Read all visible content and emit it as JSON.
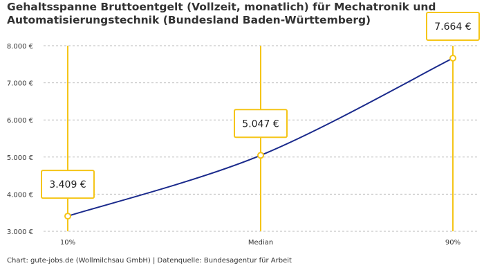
{
  "title_lines": [
    "Gehaltsspanne Bruttoentgelt (Vollzeit, monatlich) für Mechatronik und",
    "Automatisierungstechnik (Bundesland Baden-Württemberg)"
  ],
  "caption": "Chart: gute-jobs.de (Wollmilchsau GmbH) | Datenquelle: Bundesagentur für Arbeit",
  "colors": {
    "line": "#1a2a8c",
    "accent": "#f5c518",
    "grid": "#bbbbbb"
  },
  "chart_data": {
    "type": "line",
    "categories": [
      "10%",
      "Median",
      "90%"
    ],
    "series": [
      {
        "values": [
          3409,
          5047,
          7664
        ]
      }
    ],
    "data_labels": [
      "3.409 €",
      "5.047 €",
      "7.664 €"
    ],
    "y_ticks": [
      3000,
      4000,
      5000,
      6000,
      7000,
      8000
    ],
    "y_tick_labels": [
      "3.000 €",
      "4.000 €",
      "5.000 €",
      "6.000 €",
      "7.000 €",
      "8.000 €"
    ],
    "ylim": [
      3000,
      8000
    ],
    "grid": true
  }
}
